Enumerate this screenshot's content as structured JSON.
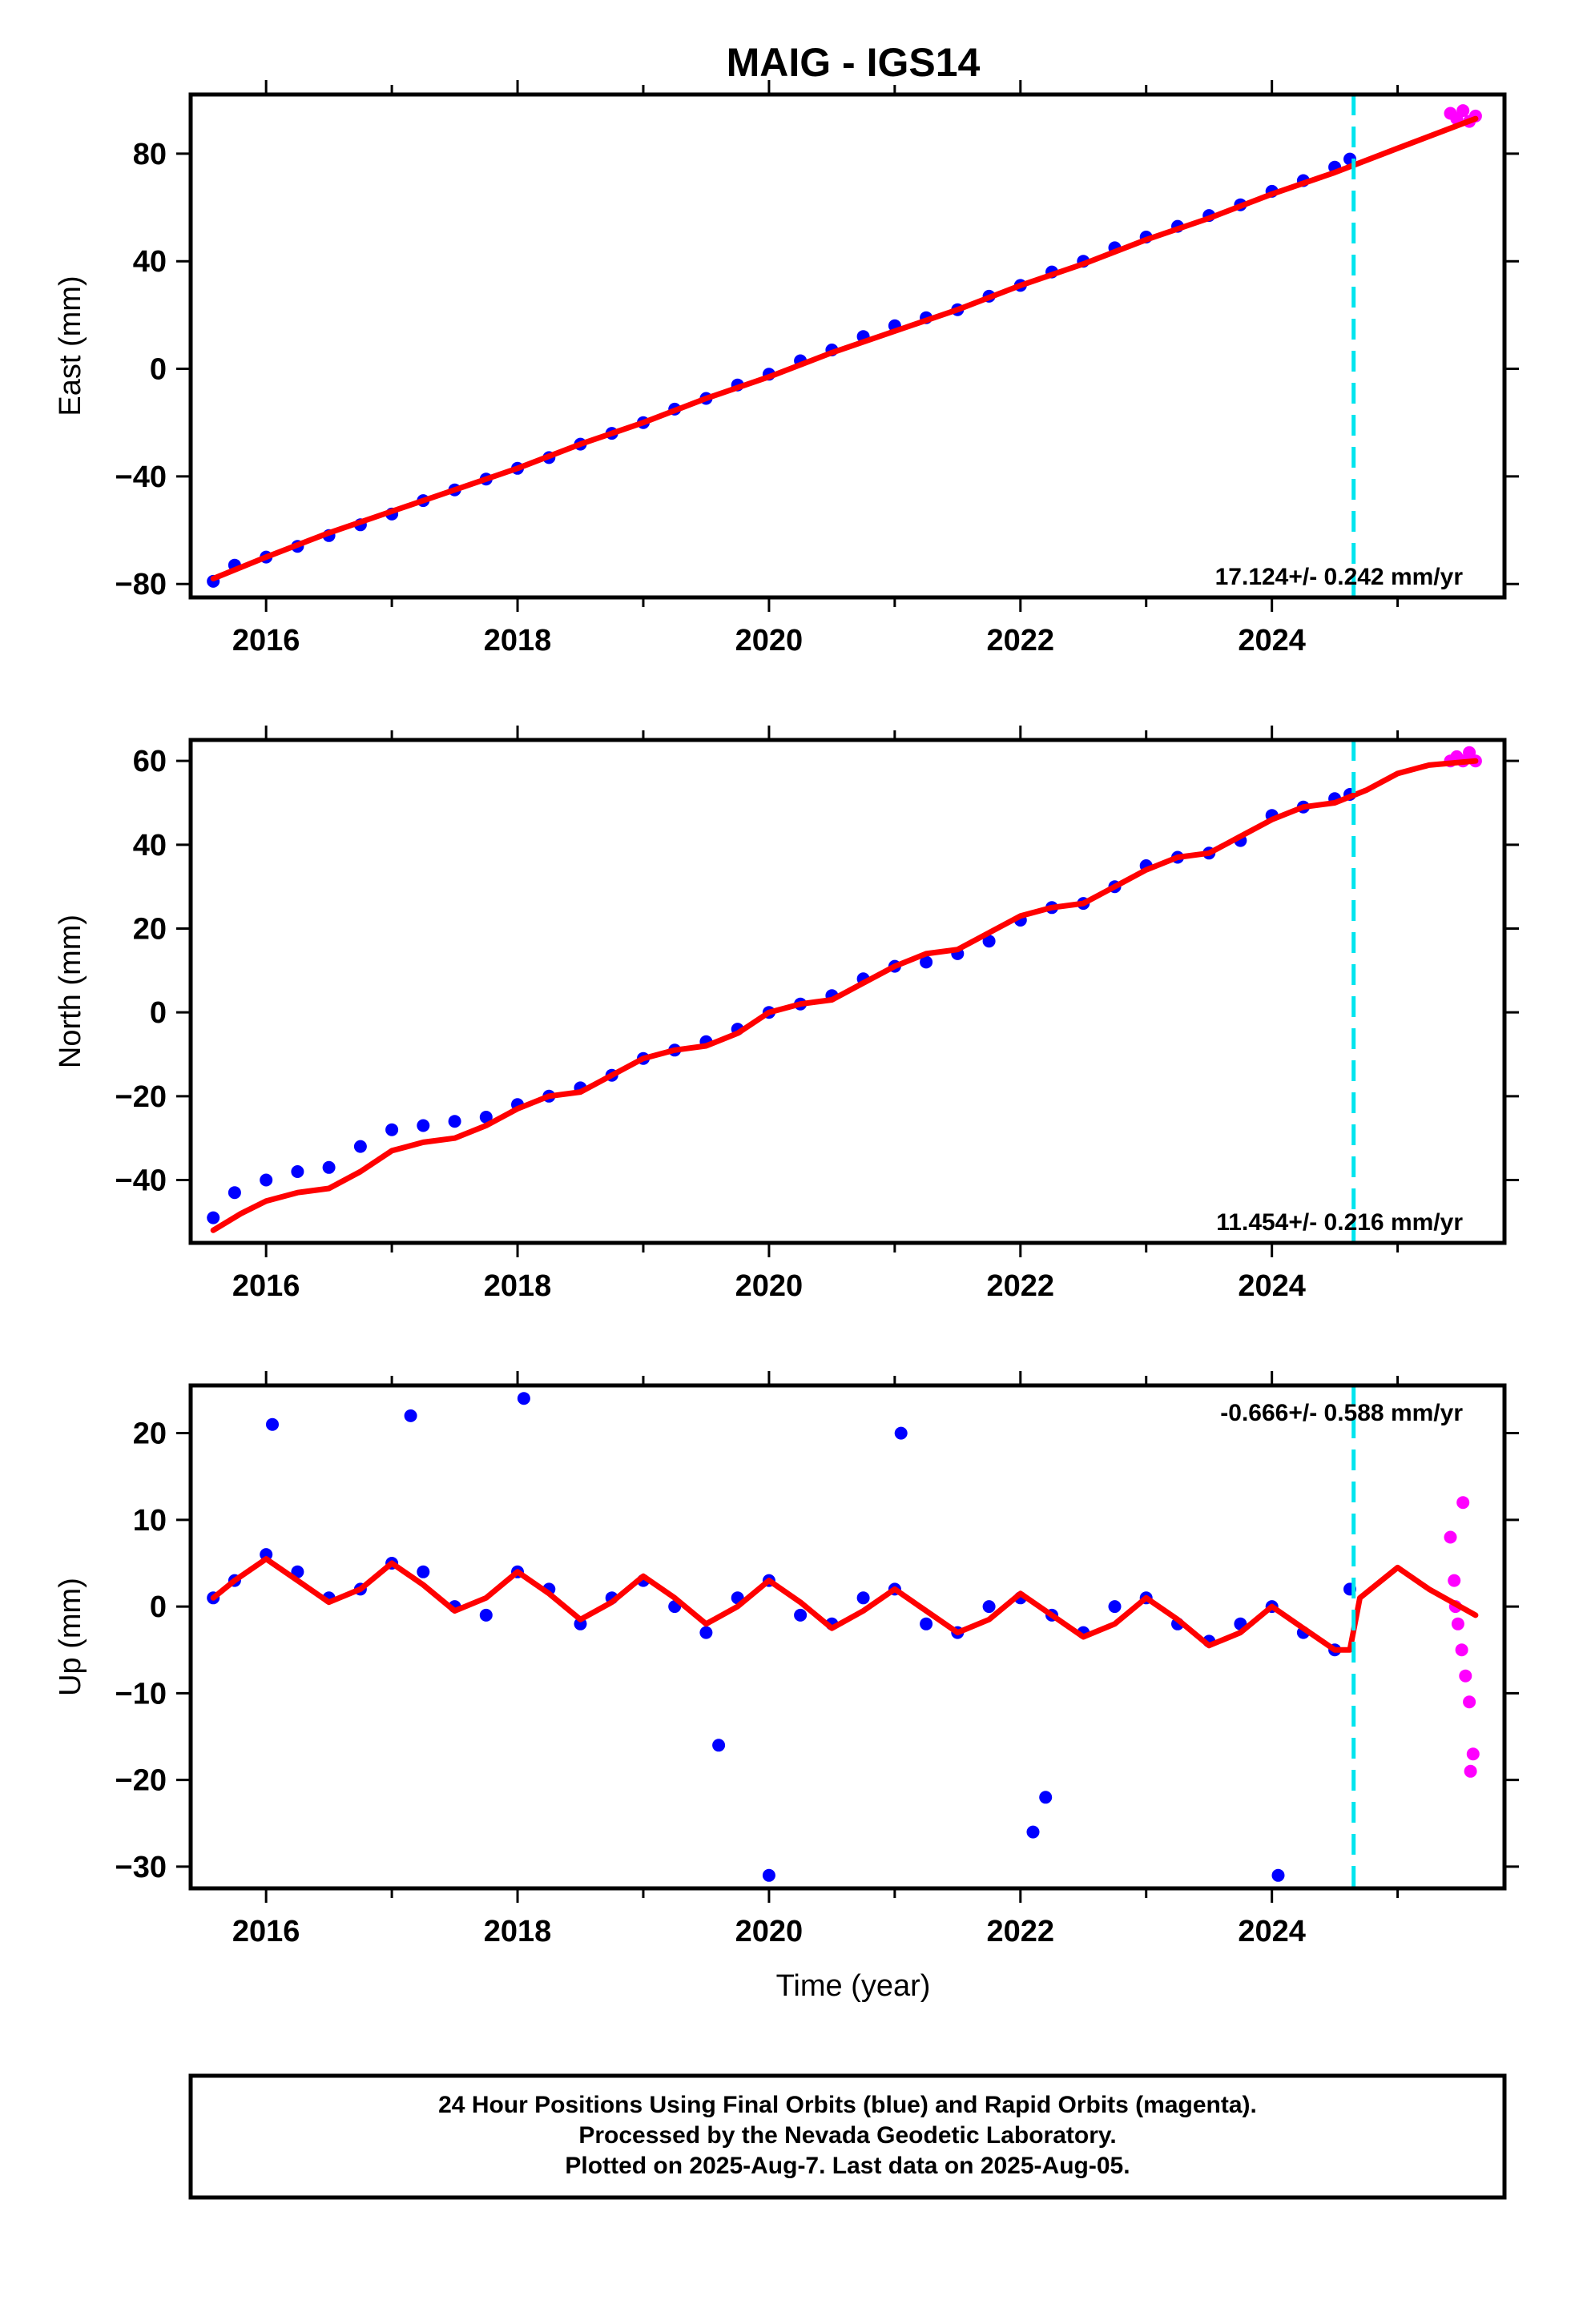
{
  "chart_data": {
    "type": "scatter",
    "title": "MAIG - IGS14",
    "xlabel": "Time (year)",
    "xlim": [
      2015.4,
      2025.85
    ],
    "x_ticks": [
      2016,
      2018,
      2020,
      2022,
      2024
    ],
    "x_tick_labels": [
      "2016",
      "2018",
      "2020",
      "2022",
      "2024"
    ],
    "cutoff_line": {
      "x": 2024.65,
      "color": "#00e5ee"
    },
    "colors": {
      "final": "#0000ff",
      "rapid": "#ff00ff",
      "model": "#ff0000",
      "cutoff": "#00e5ee"
    },
    "panels": [
      {
        "name": "East",
        "ylabel": "East (mm)",
        "ylim": [
          -85,
          102
        ],
        "y_ticks": [
          -80,
          -40,
          0,
          40,
          80
        ],
        "y_tick_labels": [
          "−80",
          "−40",
          "0",
          "40",
          "80"
        ],
        "rate_label": "17.124+/- 0.242 mm/yr",
        "rate_position": "bottom-right",
        "series": [
          {
            "name": "Final Orbits (blue)",
            "color": "#0000ff",
            "x": [
              2015.58,
              2015.75,
              2016.0,
              2016.25,
              2016.5,
              2016.75,
              2017.0,
              2017.25,
              2017.5,
              2017.75,
              2018.0,
              2018.25,
              2018.5,
              2018.75,
              2019.0,
              2019.25,
              2019.5,
              2019.75,
              2020.0,
              2020.25,
              2020.5,
              2020.75,
              2021.0,
              2021.25,
              2021.5,
              2021.75,
              2022.0,
              2022.25,
              2022.5,
              2022.75,
              2023.0,
              2023.25,
              2023.5,
              2023.75,
              2024.0,
              2024.25,
              2024.5,
              2024.62
            ],
            "y": [
              -79,
              -73,
              -70,
              -66,
              -62,
              -58,
              -54,
              -49,
              -45,
              -41,
              -37,
              -33,
              -28,
              -24,
              -20,
              -15,
              -11,
              -6,
              -2,
              3,
              7,
              12,
              16,
              19,
              22,
              27,
              31,
              36,
              40,
              45,
              49,
              53,
              57,
              61,
              66,
              70,
              75,
              78
            ]
          },
          {
            "name": "Rapid Orbits (magenta)",
            "color": "#ff00ff",
            "x": [
              2025.42,
              2025.47,
              2025.52,
              2025.57,
              2025.62
            ],
            "y": [
              95,
              93,
              96,
              92,
              94
            ]
          },
          {
            "name": "Model",
            "color": "#ff0000",
            "x": [
              2015.58,
              2016.0,
              2016.5,
              2017.0,
              2017.5,
              2018.0,
              2018.5,
              2019.0,
              2019.5,
              2020.0,
              2020.5,
              2021.0,
              2021.5,
              2022.0,
              2022.5,
              2023.0,
              2023.5,
              2024.0,
              2024.5,
              2025.0,
              2025.62
            ],
            "y": [
              -78,
              -70,
              -61,
              -53,
              -45,
              -37,
              -28,
              -20,
              -11,
              -3,
              6,
              14,
              22,
              31,
              39,
              48,
              56,
              65,
              73,
              82,
              93
            ]
          }
        ]
      },
      {
        "name": "North",
        "ylabel": "North (mm)",
        "ylim": [
          -55,
          65
        ],
        "y_ticks": [
          -40,
          -20,
          0,
          20,
          40,
          60
        ],
        "y_tick_labels": [
          "−40",
          "−20",
          "0",
          "20",
          "40",
          "60"
        ],
        "rate_label": "11.454+/- 0.216 mm/yr",
        "rate_position": "bottom-right",
        "series": [
          {
            "name": "Final Orbits (blue)",
            "color": "#0000ff",
            "x": [
              2015.58,
              2015.75,
              2016.0,
              2016.25,
              2016.5,
              2016.75,
              2017.0,
              2017.25,
              2017.5,
              2017.75,
              2018.0,
              2018.25,
              2018.5,
              2018.75,
              2019.0,
              2019.25,
              2019.5,
              2019.75,
              2020.0,
              2020.25,
              2020.5,
              2020.75,
              2021.0,
              2021.25,
              2021.5,
              2021.75,
              2022.0,
              2022.25,
              2022.5,
              2022.75,
              2023.0,
              2023.25,
              2023.5,
              2023.75,
              2024.0,
              2024.25,
              2024.5,
              2024.62
            ],
            "y": [
              -49,
              -43,
              -40,
              -38,
              -37,
              -32,
              -28,
              -27,
              -26,
              -25,
              -22,
              -20,
              -18,
              -15,
              -11,
              -9,
              -7,
              -4,
              0,
              2,
              4,
              8,
              11,
              12,
              14,
              17,
              22,
              25,
              26,
              30,
              35,
              37,
              38,
              41,
              47,
              49,
              51,
              52
            ]
          },
          {
            "name": "Rapid Orbits (magenta)",
            "color": "#ff00ff",
            "x": [
              2025.42,
              2025.47,
              2025.52,
              2025.57,
              2025.62
            ],
            "y": [
              60,
              61,
              60,
              62,
              60
            ]
          },
          {
            "name": "Model",
            "color": "#ff0000",
            "x": [
              2015.58,
              2015.8,
              2016.0,
              2016.25,
              2016.5,
              2016.75,
              2017.0,
              2017.25,
              2017.5,
              2017.75,
              2018.0,
              2018.25,
              2018.5,
              2018.75,
              2019.0,
              2019.25,
              2019.5,
              2019.75,
              2020.0,
              2020.25,
              2020.5,
              2020.75,
              2021.0,
              2021.25,
              2021.5,
              2021.75,
              2022.0,
              2022.25,
              2022.5,
              2022.75,
              2023.0,
              2023.25,
              2023.5,
              2023.75,
              2024.0,
              2024.25,
              2024.5,
              2024.75,
              2025.0,
              2025.25,
              2025.62
            ],
            "y": [
              -52,
              -48,
              -45,
              -43,
              -42,
              -38,
              -33,
              -31,
              -30,
              -27,
              -23,
              -20,
              -19,
              -15,
              -11,
              -9,
              -8,
              -5,
              0,
              2,
              3,
              7,
              11,
              14,
              15,
              19,
              23,
              25,
              26,
              30,
              34,
              37,
              38,
              42,
              46,
              49,
              50,
              53,
              57,
              59,
              60
            ]
          }
        ]
      },
      {
        "name": "Up",
        "ylabel": "Up (mm)",
        "ylim": [
          -32.5,
          25.5
        ],
        "y_ticks": [
          -30,
          -20,
          -10,
          0,
          10,
          20
        ],
        "y_tick_labels": [
          "−30",
          "−20",
          "−10",
          "0",
          "10",
          "20"
        ],
        "rate_label": "-0.666+/- 0.588 mm/yr",
        "rate_position": "top-right",
        "series": [
          {
            "name": "Final Orbits (blue)",
            "color": "#0000ff",
            "x": [
              2015.58,
              2015.75,
              2016.0,
              2016.25,
              2016.5,
              2016.75,
              2017.0,
              2017.25,
              2017.5,
              2017.75,
              2018.0,
              2018.25,
              2018.5,
              2018.75,
              2019.0,
              2019.25,
              2019.5,
              2019.75,
              2020.0,
              2020.25,
              2020.5,
              2020.75,
              2021.0,
              2021.25,
              2021.5,
              2021.75,
              2022.0,
              2022.25,
              2022.5,
              2022.75,
              2023.0,
              2023.25,
              2023.5,
              2023.75,
              2024.0,
              2024.25,
              2024.5,
              2024.62,
              2016.05,
              2017.15,
              2018.05,
              2019.6,
              2020.0,
              2021.05,
              2022.1,
              2022.2,
              2024.05
            ],
            "y": [
              1,
              3,
              6,
              4,
              1,
              2,
              5,
              4,
              0,
              -1,
              4,
              2,
              -2,
              1,
              3,
              0,
              -3,
              1,
              3,
              -1,
              -2,
              1,
              2,
              -2,
              -3,
              0,
              1,
              -1,
              -3,
              0,
              1,
              -2,
              -4,
              -2,
              0,
              -3,
              -5,
              2,
              21,
              22,
              24,
              -16,
              -31,
              20,
              -26,
              -22,
              -31
            ]
          },
          {
            "name": "Rapid Orbits (magenta)",
            "color": "#ff00ff",
            "x": [
              2025.42,
              2025.45,
              2025.48,
              2025.51,
              2025.54,
              2025.57,
              2025.6,
              2025.52,
              2025.58,
              2025.46
            ],
            "y": [
              8,
              3,
              -2,
              -5,
              -8,
              -11,
              -17,
              12,
              -19,
              0
            ]
          },
          {
            "name": "Model",
            "color": "#ff0000",
            "x": [
              2015.58,
              2015.75,
              2016.0,
              2016.25,
              2016.5,
              2016.75,
              2017.0,
              2017.25,
              2017.5,
              2017.75,
              2018.0,
              2018.25,
              2018.5,
              2018.75,
              2019.0,
              2019.25,
              2019.5,
              2019.75,
              2020.0,
              2020.25,
              2020.5,
              2020.75,
              2021.0,
              2021.25,
              2021.5,
              2021.75,
              2022.0,
              2022.25,
              2022.5,
              2022.75,
              2023.0,
              2023.25,
              2023.5,
              2023.75,
              2024.0,
              2024.25,
              2024.5,
              2024.62,
              2024.7,
              2025.0,
              2025.25,
              2025.62
            ],
            "y": [
              1,
              3,
              5.5,
              3,
              0.5,
              2,
              5,
              2.5,
              -0.5,
              1,
              4,
              1.5,
              -1.5,
              0.5,
              3.5,
              1,
              -2,
              0,
              3,
              0.5,
              -2.5,
              -0.5,
              2,
              -0.5,
              -3,
              -1.5,
              1.5,
              -1,
              -3.5,
              -2,
              1,
              -1.5,
              -4.5,
              -3,
              0,
              -2.5,
              -5,
              -5,
              1,
              4.5,
              2,
              -1
            ]
          }
        ]
      }
    ],
    "footer_lines": [
      "24 Hour Positions Using Final Orbits (blue) and Rapid Orbits (magenta).",
      "Processed by the Nevada Geodetic Laboratory.",
      "Plotted on 2025-Aug-7. Last data on 2025-Aug-05."
    ]
  }
}
